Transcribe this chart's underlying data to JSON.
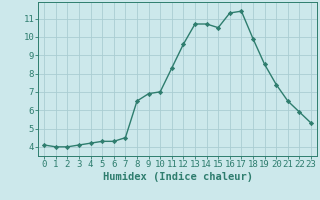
{
  "x": [
    0,
    1,
    2,
    3,
    4,
    5,
    6,
    7,
    8,
    9,
    10,
    11,
    12,
    13,
    14,
    15,
    16,
    17,
    18,
    19,
    20,
    21,
    22,
    23
  ],
  "y": [
    4.1,
    4.0,
    4.0,
    4.1,
    4.2,
    4.3,
    4.3,
    4.5,
    6.5,
    6.9,
    7.0,
    8.3,
    9.6,
    10.7,
    10.7,
    10.5,
    11.3,
    11.4,
    9.9,
    8.5,
    7.4,
    6.5,
    5.9,
    5.3
  ],
  "line_color": "#2e7d6e",
  "marker": "D",
  "marker_size": 2.2,
  "background_color": "#cce8eb",
  "grid_color": "#aacdd2",
  "xlabel": "Humidex (Indice chaleur)",
  "xlim": [
    -0.5,
    23.5
  ],
  "ylim": [
    3.5,
    11.9
  ],
  "yticks": [
    4,
    5,
    6,
    7,
    8,
    9,
    10,
    11
  ],
  "xticks": [
    0,
    1,
    2,
    3,
    4,
    5,
    6,
    7,
    8,
    9,
    10,
    11,
    12,
    13,
    14,
    15,
    16,
    17,
    18,
    19,
    20,
    21,
    22,
    23
  ],
  "tick_label_fontsize": 6.5,
  "xlabel_fontsize": 7.5,
  "axis_color": "#2e7d6e",
  "line_width": 1.0
}
